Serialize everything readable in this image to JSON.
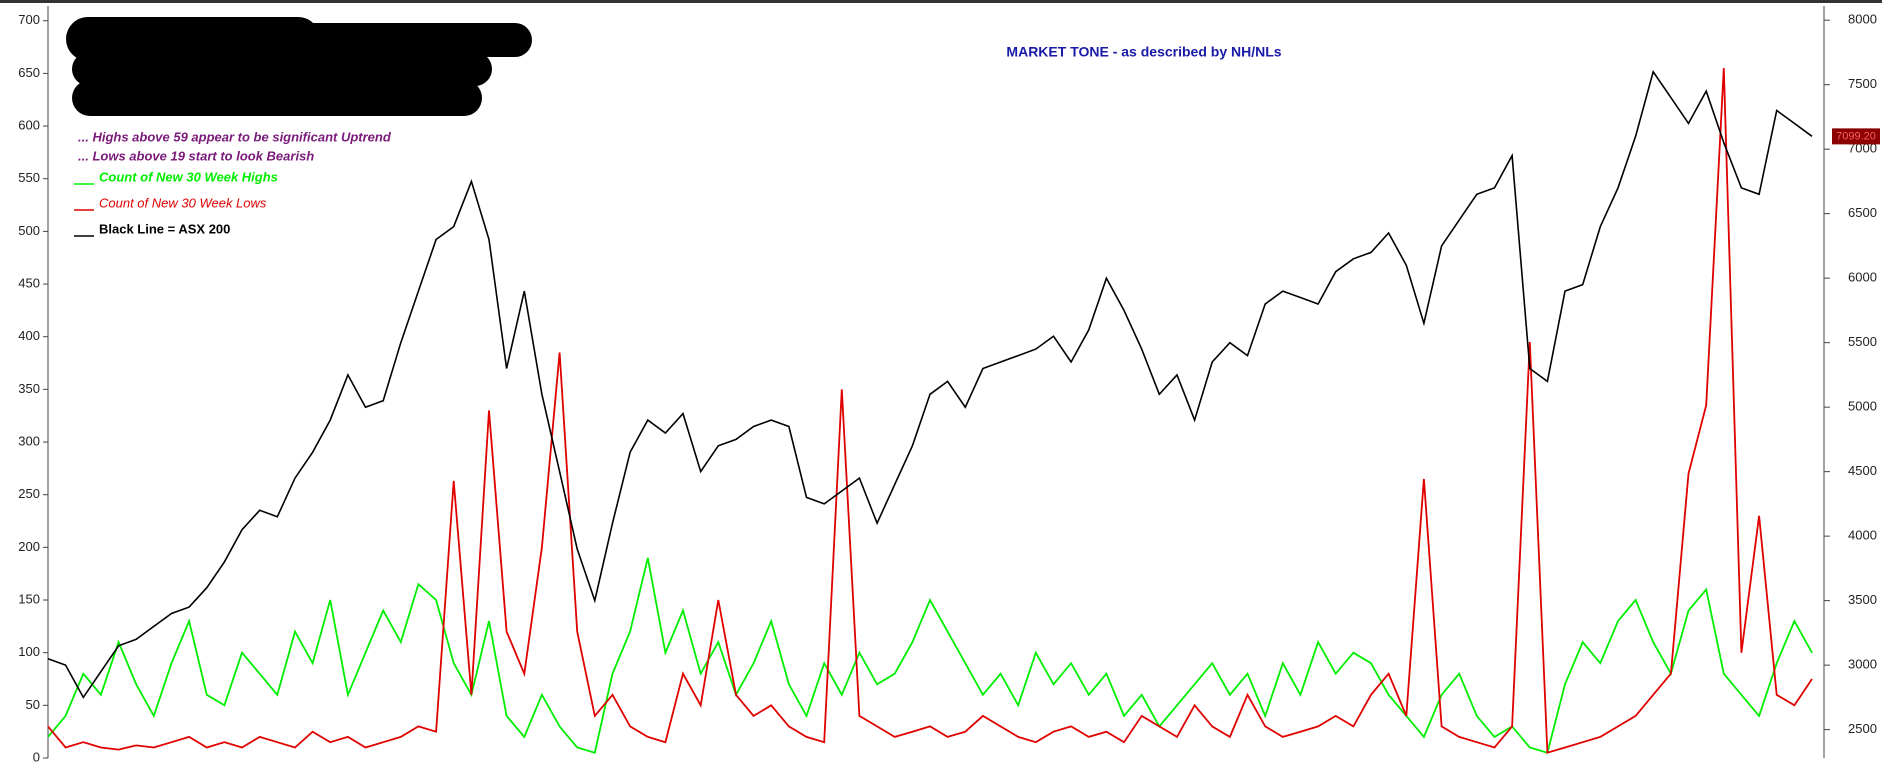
{
  "chart_data": {
    "type": "line",
    "title": "MARKET TONE  - as described by NH/NLs",
    "annotations": [
      "... Highs above 59 appear to be significant Uptrend",
      "... Lows above 19 start to look Bearish"
    ],
    "ylim": [
      0,
      714
    ],
    "yticks": [
      0,
      50,
      100,
      150,
      200,
      250,
      300,
      350,
      400,
      450,
      500,
      550,
      600,
      650,
      700
    ],
    "y2lim": [
      2280,
      8110
    ],
    "y2ticks": [
      2500,
      3000,
      3500,
      4000,
      4500,
      5000,
      5500,
      6000,
      6500,
      7000,
      7500,
      8000
    ],
    "last_price": {
      "value": 7099.2,
      "label": "7099.20"
    },
    "series": [
      {
        "name": "Count of New 30 Week Highs",
        "color": "#00ee00",
        "values": [
          20,
          40,
          80,
          60,
          110,
          70,
          40,
          90,
          130,
          60,
          50,
          100,
          80,
          60,
          120,
          90,
          150,
          60,
          100,
          140,
          110,
          165,
          150,
          90,
          60,
          130,
          40,
          20,
          60,
          30,
          10,
          5,
          80,
          120,
          190,
          100,
          140,
          80,
          110,
          60,
          90,
          130,
          70,
          40,
          90,
          60,
          100,
          70,
          80,
          110,
          150,
          120,
          90,
          60,
          80,
          50,
          100,
          70,
          90,
          60,
          80,
          40,
          60,
          30,
          50,
          70,
          90,
          60,
          80,
          40,
          90,
          60,
          110,
          80,
          100,
          90,
          60,
          40,
          20,
          60,
          80,
          40,
          20,
          30,
          10,
          5,
          70,
          110,
          90,
          130,
          150,
          110,
          80,
          140,
          160,
          80,
          60,
          40,
          90,
          130,
          100
        ]
      },
      {
        "name": "Count of New 30 Week Lows",
        "color": "#e00000",
        "values": [
          30,
          10,
          15,
          10,
          8,
          12,
          10,
          15,
          20,
          10,
          15,
          10,
          20,
          15,
          10,
          25,
          15,
          20,
          10,
          15,
          20,
          30,
          25,
          263,
          60,
          330,
          120,
          80,
          200,
          385,
          120,
          40,
          60,
          30,
          20,
          15,
          80,
          50,
          150,
          60,
          40,
          50,
          30,
          20,
          15,
          350,
          40,
          30,
          20,
          25,
          30,
          20,
          25,
          40,
          30,
          20,
          15,
          25,
          30,
          20,
          25,
          15,
          40,
          30,
          20,
          50,
          30,
          20,
          60,
          30,
          20,
          25,
          30,
          40,
          30,
          60,
          80,
          40,
          265,
          30,
          20,
          15,
          10,
          30,
          395,
          5,
          10,
          15,
          20,
          30,
          40,
          60,
          80,
          270,
          335,
          655,
          100,
          230,
          60,
          50,
          75
        ]
      },
      {
        "name": "Black Line = ASX 200",
        "color": "#000000",
        "axis": "y2",
        "values": [
          3050,
          3000,
          2750,
          2950,
          3150,
          3200,
          3300,
          3400,
          3450,
          3600,
          3800,
          4050,
          4200,
          4150,
          4450,
          4650,
          4900,
          5250,
          5000,
          5050,
          5500,
          5900,
          6300,
          6400,
          6750,
          6300,
          5300,
          5900,
          5100,
          4500,
          3900,
          3500,
          4100,
          4650,
          4900,
          4800,
          4950,
          4500,
          4700,
          4750,
          4850,
          4900,
          4850,
          4300,
          4250,
          4350,
          4450,
          4100,
          4400,
          4700,
          5100,
          5200,
          5000,
          5300,
          5350,
          5400,
          5450,
          5550,
          5350,
          5600,
          6000,
          5750,
          5450,
          5100,
          5250,
          4900,
          5350,
          5500,
          5400,
          5800,
          5900,
          5850,
          5800,
          6050,
          6150,
          6200,
          6350,
          6100,
          5650,
          6250,
          6450,
          6650,
          6700,
          6950,
          5300,
          5200,
          5900,
          5950,
          6400,
          6700,
          7100,
          7600,
          7400,
          7200,
          7450,
          7050,
          6700,
          6650,
          7300,
          7200,
          7100
        ]
      }
    ]
  }
}
